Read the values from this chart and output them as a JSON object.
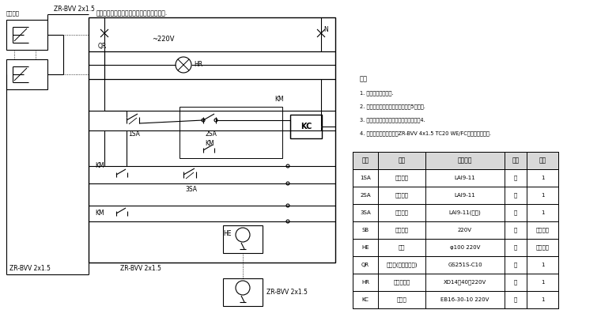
{
  "bg_color": "#ffffff",
  "line_color": "#000000",
  "text_color": "#000000",
  "cable_top": "ZR-BVV 2x1.5",
  "cable_bot_left": "ZR-BVV 2x1.5",
  "cable_bot_mid": "ZR-BVV 2x1.5",
  "cable_bot_right": "ZR-BVV 2x1.5",
  "box_title": "每门、明室、楼梯）信号灯及接线口上安装.",
  "voltage": "~220V",
  "label_QR": "QR",
  "label_N": "N",
  "label_HR": "HR",
  "label_KM1": "KM",
  "label_KM2": "KM",
  "label_KM3": "KM",
  "label_KC": "KC",
  "label_1SA": "1SA",
  "label_2SA": "2SA",
  "label_3SA": "3SA",
  "label_HE": "HE",
  "label_SB": "被联按鈕",
  "notes_title": "说明",
  "notes": [
    "1. 增加火灾报警事项.",
    "2. 控制笱里应出厂时制健序，用起5本机能.",
    "3. 根据消防机消警号各笱个连大系的合起4.",
    "4. 警电及更更准备组织用ZR-BVV 4x1.5 TC20 WE/FC冻清防火零意此."
  ],
  "table_headers": [
    "符号",
    "名称",
    "型号规格",
    "单位",
    "数量"
  ],
  "table_rows": [
    [
      "1SA",
      "停止按鈕",
      "LAI9-11",
      "个",
      "1"
    ],
    [
      "2SA",
      "启动按鈕",
      "LAI9-11",
      "个",
      "1"
    ],
    [
      "3SA",
      "消音按鈕",
      "LAI9-11(串联)",
      "个",
      "1"
    ],
    [
      "SB",
      "被联按鈕",
      "220V",
      "个",
      "同消火栓"
    ],
    [
      "HE",
      "警铃",
      "φ100 220V",
      "个",
      "同消火栓"
    ],
    [
      "QR",
      "断路器(带漏电保护)",
      "GS251S-C10",
      "个",
      "1"
    ],
    [
      "HR",
      "电源指示灯",
      "XD14（40）220V",
      "个",
      "1"
    ],
    [
      "KC",
      "接触器",
      "EB16-30-10 220V",
      "个",
      "1"
    ]
  ]
}
